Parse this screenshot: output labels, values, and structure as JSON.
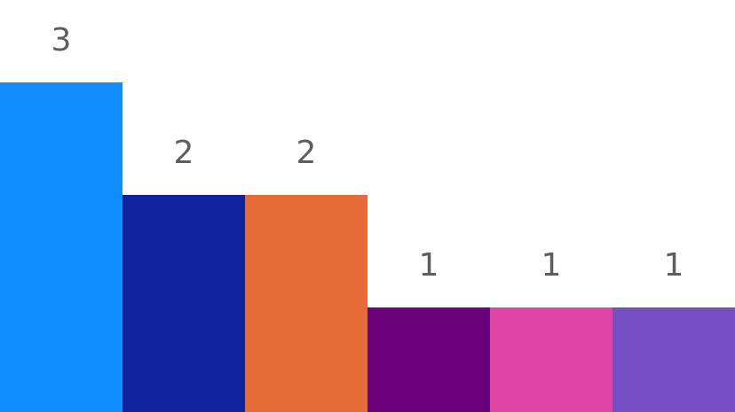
{
  "chart_data": {
    "type": "bar",
    "categories": [
      null,
      null,
      null,
      null,
      null,
      null
    ],
    "values": [
      3,
      2,
      2,
      1,
      1,
      1
    ],
    "colors": [
      "#118dff",
      "#12239e",
      "#e66c37",
      "#6b007b",
      "#e044a7",
      "#744ec2"
    ]
  }
}
